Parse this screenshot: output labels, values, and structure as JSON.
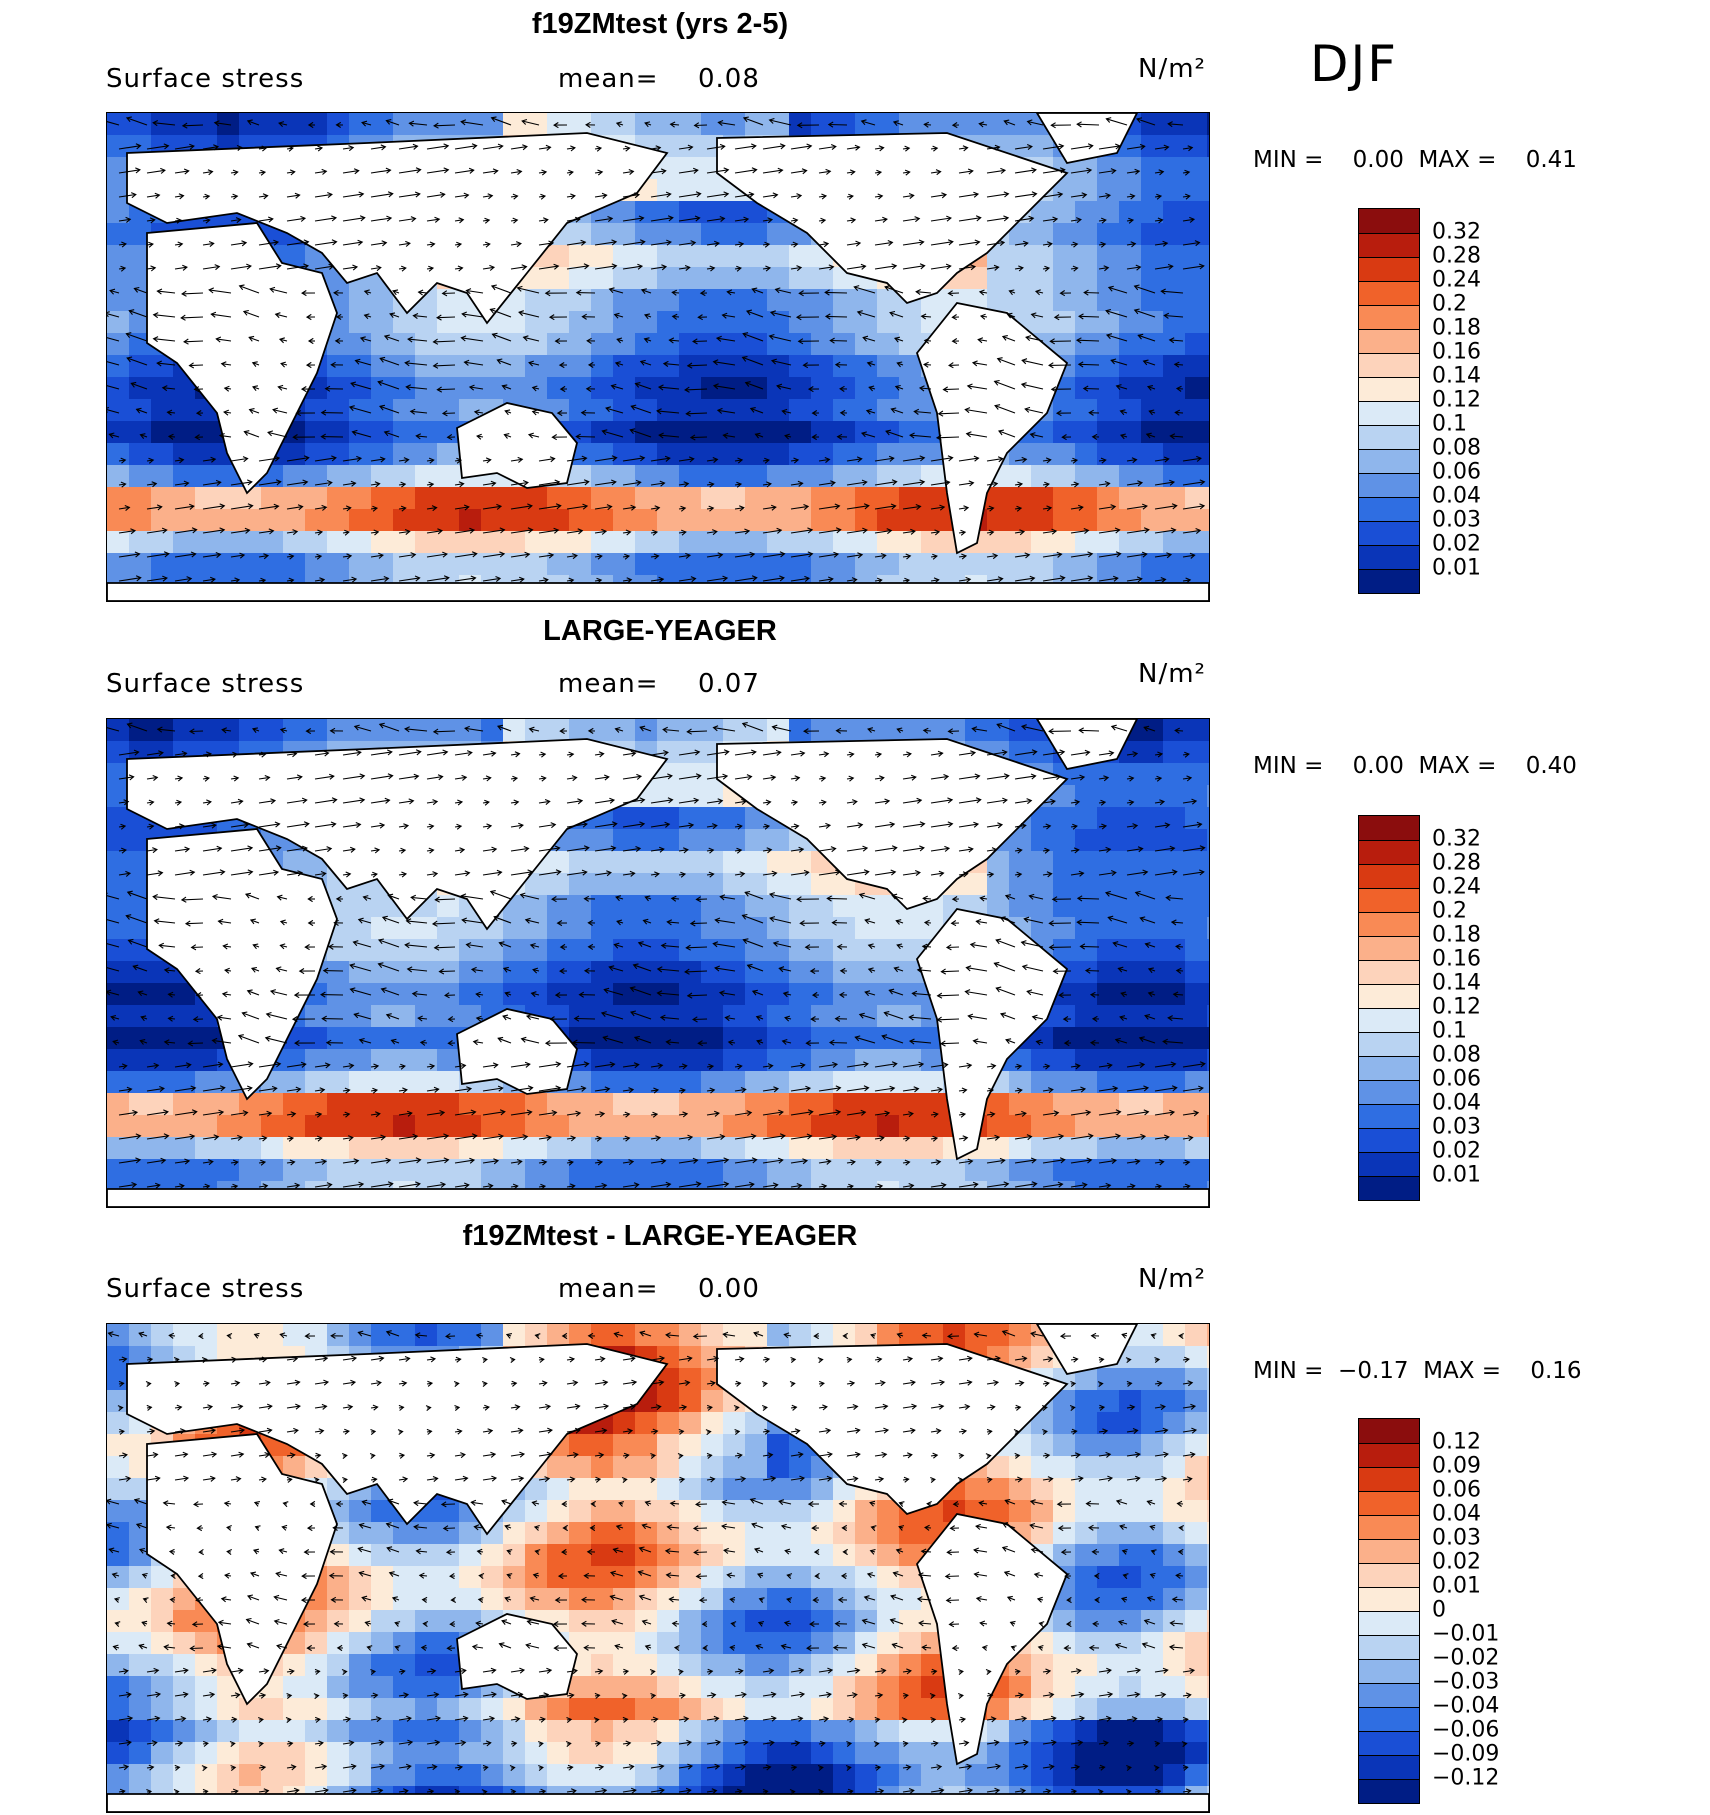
{
  "season": "DJF",
  "panels": [
    {
      "title": "f19ZMtest (yrs 2-5)",
      "variable": "Surface stress",
      "mean_label": "mean=",
      "mean_value": "0.08",
      "units": "N/m²",
      "min_label": "MIN =",
      "min_value": "0.00",
      "max_label": "MAX =",
      "max_value": "0.41",
      "colorbar_labels": [
        "0.32",
        "0.28",
        "0.24",
        "0.2",
        "0.18",
        "0.16",
        "0.14",
        "0.12",
        "0.1",
        "0.08",
        "0.06",
        "0.04",
        "0.03",
        "0.02",
        "0.01"
      ],
      "colorbar_colors": [
        "#8b0d0d",
        "#b81d0d",
        "#d93a12",
        "#f0622a",
        "#f98a55",
        "#fbb08a",
        "#fdd3bb",
        "#fdebd8",
        "#dbeaf7",
        "#b9d3f2",
        "#8fb6ec",
        "#5f92e6",
        "#2f6ee2",
        "#1a4fd6",
        "#0a35b8",
        "#001d85"
      ],
      "palette": "positive"
    },
    {
      "title": "LARGE-YEAGER",
      "variable": "Surface stress",
      "mean_label": "mean=",
      "mean_value": "0.07",
      "units": "N/m²",
      "min_label": "MIN =",
      "min_value": "0.00",
      "max_label": "MAX =",
      "max_value": "0.40",
      "colorbar_labels": [
        "0.32",
        "0.28",
        "0.24",
        "0.2",
        "0.18",
        "0.16",
        "0.14",
        "0.12",
        "0.1",
        "0.08",
        "0.06",
        "0.04",
        "0.03",
        "0.02",
        "0.01"
      ],
      "colorbar_colors": [
        "#8b0d0d",
        "#b81d0d",
        "#d93a12",
        "#f0622a",
        "#f98a55",
        "#fbb08a",
        "#fdd3bb",
        "#fdebd8",
        "#dbeaf7",
        "#b9d3f2",
        "#8fb6ec",
        "#5f92e6",
        "#2f6ee2",
        "#1a4fd6",
        "#0a35b8",
        "#001d85"
      ],
      "palette": "positive"
    },
    {
      "title": "f19ZMtest - LARGE-YEAGER",
      "variable": "Surface stress",
      "mean_label": "mean=",
      "mean_value": "0.00",
      "units": "N/m²",
      "min_label": "MIN =",
      "min_value": "−0.17",
      "max_label": "MAX =",
      "max_value": "0.16",
      "colorbar_labels": [
        "0.12",
        "0.09",
        "0.06",
        "0.04",
        "0.03",
        "0.02",
        "0.01",
        "0",
        "−0.01",
        "−0.02",
        "−0.03",
        "−0.04",
        "−0.06",
        "−0.09",
        "−0.12"
      ],
      "colorbar_colors": [
        "#8b0d0d",
        "#b81d0d",
        "#d93a12",
        "#f0622a",
        "#f98a55",
        "#fbb08a",
        "#fdd3bb",
        "#fdebd8",
        "#dbeaf7",
        "#b9d3f2",
        "#8fb6ec",
        "#5f92e6",
        "#2f6ee2",
        "#1a4fd6",
        "#0a35b8",
        "#001d85"
      ],
      "palette": "difference"
    }
  ]
}
